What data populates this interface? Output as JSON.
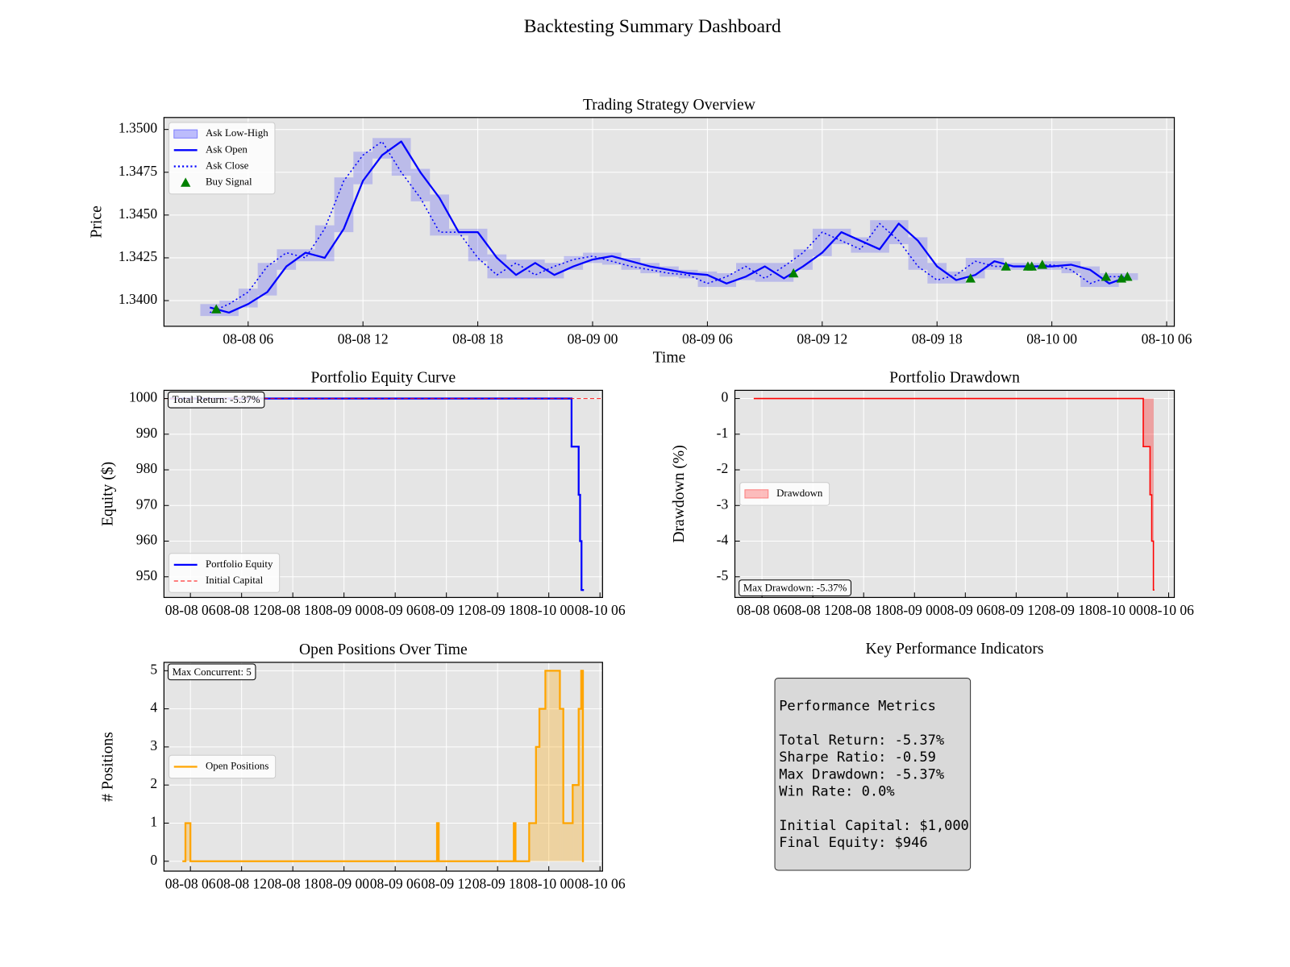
{
  "title": "Backtesting Summary Dashboard",
  "chart_data": [
    {
      "type": "line",
      "title": "Trading Strategy Overview",
      "xlabel": "Time",
      "ylabel": "Price",
      "x": [
        "08-08 04",
        "08-08 05",
        "08-08 06",
        "08-08 07",
        "08-08 08",
        "08-08 09",
        "08-08 10",
        "08-08 11",
        "08-08 12",
        "08-08 13",
        "08-08 14",
        "08-08 15",
        "08-08 16",
        "08-08 17",
        "08-08 18",
        "08-08 19",
        "08-08 20",
        "08-08 21",
        "08-08 22",
        "08-08 23",
        "08-09 00",
        "08-09 01",
        "08-09 02",
        "08-09 03",
        "08-09 04",
        "08-09 05",
        "08-09 06",
        "08-09 07",
        "08-09 08",
        "08-09 09",
        "08-09 10",
        "08-09 11",
        "08-09 12",
        "08-09 13",
        "08-09 14",
        "08-09 15",
        "08-09 16",
        "08-09 17",
        "08-09 18",
        "08-09 19",
        "08-09 20",
        "08-09 21",
        "08-09 22",
        "08-09 23",
        "08-10 00",
        "08-10 01",
        "08-10 02",
        "08-10 03",
        "08-10 04"
      ],
      "series": [
        {
          "name": "Ask Low-High",
          "draw": "band",
          "color": "#0000ff",
          "low": [
            1.3391,
            1.3391,
            1.3396,
            1.3403,
            1.3418,
            1.3423,
            1.3423,
            1.344,
            1.3468,
            1.3483,
            1.3473,
            1.3458,
            1.3438,
            1.3438,
            1.3423,
            1.3413,
            1.3413,
            1.3413,
            1.3413,
            1.3418,
            1.3422,
            1.3421,
            1.3418,
            1.3416,
            1.3414,
            1.3413,
            1.3408,
            1.3408,
            1.3412,
            1.3411,
            1.3411,
            1.3418,
            1.3426,
            1.3433,
            1.3428,
            1.3428,
            1.3433,
            1.3418,
            1.341,
            1.341,
            1.3413,
            1.3418,
            1.3418,
            1.3418,
            1.3418,
            1.3416,
            1.3408,
            1.3408,
            1.3412
          ],
          "high": [
            1.3398,
            1.34,
            1.3407,
            1.3422,
            1.343,
            1.343,
            1.3444,
            1.3472,
            1.3487,
            1.3495,
            1.3495,
            1.3477,
            1.3462,
            1.3442,
            1.3442,
            1.3427,
            1.3424,
            1.3424,
            1.3422,
            1.3426,
            1.3428,
            1.3428,
            1.3425,
            1.3422,
            1.342,
            1.3418,
            1.3417,
            1.3416,
            1.3422,
            1.3422,
            1.3422,
            1.343,
            1.3442,
            1.3442,
            1.3437,
            1.3447,
            1.3447,
            1.3437,
            1.3422,
            1.3417,
            1.3425,
            1.3425,
            1.3422,
            1.3422,
            1.3423,
            1.3423,
            1.342,
            1.3416,
            1.3416
          ]
        },
        {
          "name": "Ask Open",
          "draw": "line",
          "color": "#0000ff",
          "values": [
            1.3396,
            1.3393,
            1.3398,
            1.3405,
            1.342,
            1.3428,
            1.3425,
            1.3442,
            1.347,
            1.3485,
            1.3493,
            1.3475,
            1.346,
            1.344,
            1.344,
            1.3425,
            1.3415,
            1.3422,
            1.3415,
            1.342,
            1.3424,
            1.3426,
            1.3423,
            1.342,
            1.3418,
            1.3416,
            1.3415,
            1.341,
            1.3414,
            1.342,
            1.3413,
            1.342,
            1.3428,
            1.344,
            1.3435,
            1.343,
            1.3445,
            1.3435,
            1.342,
            1.3412,
            1.3415,
            1.3423,
            1.342,
            1.342,
            1.342,
            1.3421,
            1.3418,
            1.341,
            1.3414
          ]
        },
        {
          "name": "Ask Close",
          "draw": "dotted",
          "color": "#0000ff",
          "values": [
            1.3393,
            1.3398,
            1.3405,
            1.342,
            1.3428,
            1.3425,
            1.3442,
            1.347,
            1.3485,
            1.3493,
            1.3475,
            1.346,
            1.344,
            1.344,
            1.3425,
            1.3415,
            1.3422,
            1.3415,
            1.342,
            1.3424,
            1.3426,
            1.3423,
            1.342,
            1.3418,
            1.3416,
            1.3415,
            1.341,
            1.3414,
            1.342,
            1.3413,
            1.342,
            1.3428,
            1.344,
            1.3435,
            1.343,
            1.3445,
            1.3435,
            1.342,
            1.3412,
            1.3415,
            1.3423,
            1.342,
            1.342,
            1.342,
            1.3421,
            1.3418,
            1.341,
            1.3414,
            1.3414
          ]
        },
        {
          "name": "Buy Signal",
          "draw": "scatter",
          "color": "#008000",
          "x": [
            "08-08 04:20",
            "08-09 10:30",
            "08-09 19:45",
            "08-09 21:36",
            "08-09 22:45",
            "08-09 22:57",
            "08-09 23:30",
            "08-10 02:50",
            "08-10 03:38",
            "08-10 03:57"
          ],
          "values": [
            1.3395,
            1.3416,
            1.3413,
            1.342,
            1.342,
            1.342,
            1.3421,
            1.3414,
            1.3413,
            1.3414
          ]
        }
      ],
      "xlim": [
        "08-08 01:36",
        "08-10 06:24"
      ],
      "ylim": [
        1.3385,
        1.3507
      ],
      "xticks": [
        "08-08 06",
        "08-08 12",
        "08-08 18",
        "08-09 00",
        "08-09 06",
        "08-09 12",
        "08-09 18",
        "08-10 00",
        "08-10 06"
      ],
      "yticks": [
        {
          "value": 1.34,
          "label": "1.3400"
        },
        1.3425,
        {
          "value": 1.345,
          "label": "1.3450"
        },
        1.3475,
        {
          "value": 1.35,
          "label": "1.3500"
        }
      ],
      "grid": true,
      "legend": "upper left"
    },
    {
      "type": "line",
      "title": "Portfolio Equity Curve",
      "ylabel": "Equity ($)",
      "series": [
        {
          "name": "Portfolio Equity",
          "draw": "step",
          "color": "#0000ff",
          "x": [
            "08-08 03:40",
            "08-10 02:40",
            "08-10 03:30",
            "08-10 03:40",
            "08-10 03:50",
            "08-10 04:00"
          ],
          "values": [
            1000,
            986.5,
            973,
            960,
            946.3,
            946.3
          ]
        },
        {
          "name": "Initial Capital",
          "draw": "hline",
          "color": "#ff0000",
          "value": 1000
        }
      ],
      "annotation": "Total Return: -5.37%",
      "annotation_loc": "upper left",
      "xlim": [
        "08-08 02:54",
        "08-10 06:18"
      ],
      "ylim": [
        944.2,
        1002.3
      ],
      "xticks": [
        "08-08 06",
        "08-08 12",
        "08-08 18",
        "08-09 00",
        "08-09 06",
        "08-09 12",
        "08-09 18",
        "08-10 00",
        "08-10 06"
      ],
      "yticks": [
        950,
        960,
        970,
        980,
        990,
        1000
      ],
      "grid": true,
      "legend": "lower left"
    },
    {
      "type": "line",
      "title": "Portfolio Drawdown",
      "ylabel": "Drawdown (%)",
      "series": [
        {
          "name": "Drawdown",
          "draw": "fill-step",
          "color": "#ff0000",
          "x": [
            "08-08 05:06",
            "08-10 03:00",
            "08-10 03:48",
            "08-10 04:00",
            "08-10 04:12",
            "08-10 04:14"
          ],
          "values": [
            0,
            -1.35,
            -2.7,
            -4,
            -5.37,
            -5.37
          ]
        }
      ],
      "annotation": "Max Drawdown: -5.37%",
      "annotation_loc": "lower left",
      "xlim": [
        "08-08 02:48",
        "08-10 06:40"
      ],
      "ylim": [
        -5.58,
        0.23
      ],
      "xticks": [
        "08-08 06",
        "08-08 12",
        "08-08 18",
        "08-09 00",
        "08-09 06",
        "08-09 12",
        "08-09 18",
        "08-10 00",
        "08-10 06"
      ],
      "yticks": [
        -5,
        -4,
        -3,
        -2,
        -1,
        0
      ],
      "grid": true,
      "legend": "center left"
    },
    {
      "type": "line",
      "title": "Open Positions Over Time",
      "ylabel": "# Positions",
      "series": [
        {
          "name": "Open Positions",
          "draw": "step-area",
          "color": "#ffa500",
          "x": [
            "08-08 05:10",
            "08-08 05:25",
            "08-08 06:00",
            "08-09 10:54",
            "08-09 11:06",
            "08-09 19:54",
            "08-09 20:06",
            "08-09 21:42",
            "08-09 22:30",
            "08-09 22:54",
            "08-09 23:36",
            "08-10 01:18",
            "08-10 01:42",
            "08-10 02:48",
            "08-10 03:30",
            "08-10 03:48",
            "08-10 04:00"
          ],
          "values": [
            0,
            1,
            0,
            1,
            0,
            1,
            0,
            1,
            3,
            4,
            5,
            4,
            1,
            2,
            4,
            5,
            0
          ]
        }
      ],
      "annotation": "Max Concurrent: 5",
      "annotation_loc": "upper left",
      "xlim": [
        "08-08 02:54",
        "08-10 06:18"
      ],
      "ylim": [
        -0.26,
        5.22
      ],
      "xticks": [
        "08-08 06",
        "08-08 12",
        "08-08 18",
        "08-09 00",
        "08-09 06",
        "08-09 12",
        "08-09 18",
        "08-10 00",
        "08-10 06"
      ],
      "yticks": [
        0,
        1,
        2,
        3,
        4,
        5
      ],
      "grid": true,
      "legend": "center left"
    }
  ],
  "kpi": {
    "title": "Key Performance Indicators",
    "heading": "Performance Metrics",
    "groups": [
      [
        "Total Return: -5.37%",
        "Sharpe Ratio: -0.59",
        "Max Drawdown: -5.37%",
        "Win Rate: 0.0%"
      ],
      [
        "Initial Capital: $1,000",
        "Final Equity: $946"
      ]
    ]
  }
}
